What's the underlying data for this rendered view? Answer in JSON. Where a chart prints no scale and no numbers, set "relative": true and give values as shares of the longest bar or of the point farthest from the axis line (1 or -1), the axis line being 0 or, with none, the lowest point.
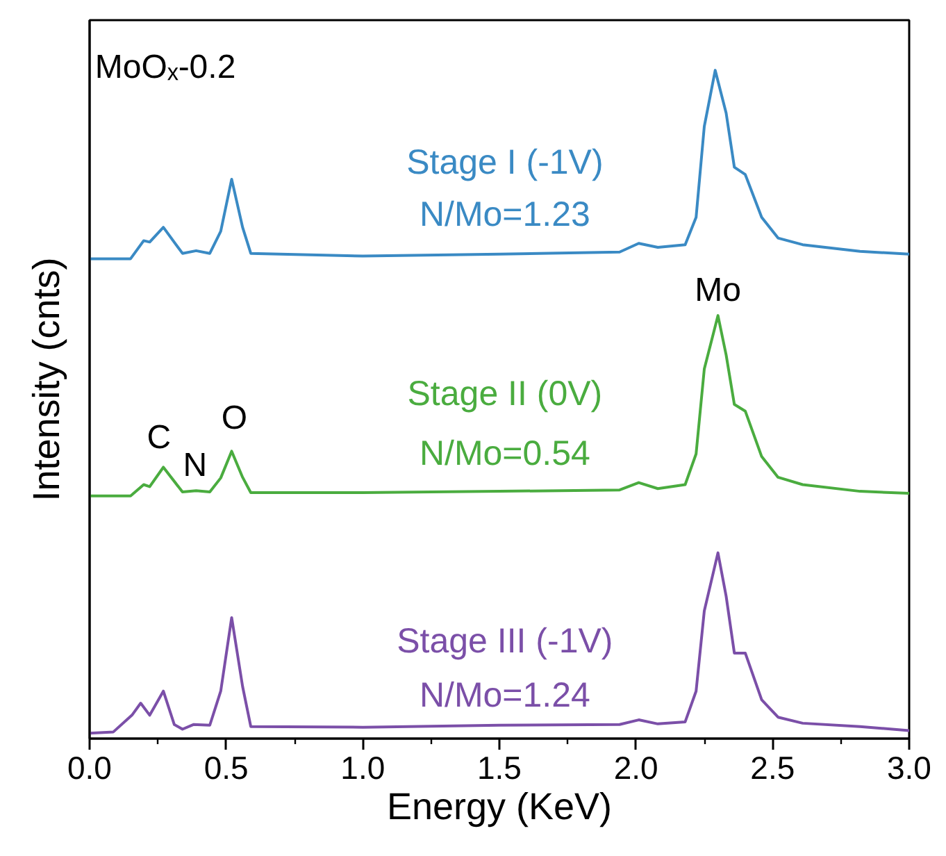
{
  "chart_data": {
    "type": "line",
    "relative": true,
    "xlabel": "Energy (KeV)",
    "ylabel": "Intensity (cnts)",
    "xlim": [
      0,
      3
    ],
    "xticks": [
      {
        "value": 0,
        "label": "0.0"
      },
      0.5,
      {
        "value": 1,
        "label": "1.0"
      },
      1.5,
      {
        "value": 2,
        "label": "2.0"
      },
      2.5,
      {
        "value": 3,
        "label": "3.0"
      }
    ],
    "grid": false,
    "marker": "none",
    "line_style": "solid",
    "annotations": [
      "MoOₓ-0.2",
      "C",
      "N",
      "O",
      "Mo",
      "N/Mo=1.23",
      "N/Mo=0.54",
      "N/Mo=1.24"
    ],
    "series": [
      {
        "name": "Stage I (-1V)",
        "color": "#3a8ac4",
        "x": [
          0,
          0.15,
          0.198,
          0.22,
          0.27,
          0.34,
          0.39,
          0.44,
          0.48,
          0.52,
          0.56,
          0.59,
          1.0,
          1.5,
          1.94,
          2.01,
          2.08,
          2.18,
          2.22,
          2.25,
          2.29,
          2.33,
          2.36,
          2.4,
          2.46,
          2.52,
          2.61,
          2.82,
          3.0
        ],
        "values": [
          0.718,
          0.718,
          0.745,
          0.743,
          0.765,
          0.726,
          0.73,
          0.726,
          0.759,
          0.837,
          0.765,
          0.726,
          0.722,
          0.725,
          0.728,
          0.741,
          0.735,
          0.739,
          0.78,
          0.916,
          1.0,
          0.936,
          0.855,
          0.844,
          0.78,
          0.749,
          0.739,
          0.729,
          0.725
        ]
      },
      {
        "name": "Stage II (0V)",
        "color": "#4aac3f",
        "x": [
          0,
          0.15,
          0.198,
          0.22,
          0.27,
          0.34,
          0.39,
          0.44,
          0.48,
          0.52,
          0.56,
          0.59,
          1.0,
          1.5,
          1.94,
          2.01,
          2.08,
          2.18,
          2.22,
          2.25,
          2.3,
          2.33,
          2.36,
          2.4,
          2.46,
          2.52,
          2.61,
          2.82,
          3.0
        ],
        "values": [
          0.363,
          0.363,
          0.38,
          0.377,
          0.406,
          0.369,
          0.371,
          0.369,
          0.39,
          0.43,
          0.391,
          0.368,
          0.368,
          0.37,
          0.372,
          0.383,
          0.374,
          0.38,
          0.426,
          0.553,
          0.633,
          0.574,
          0.5,
          0.49,
          0.422,
          0.391,
          0.38,
          0.37,
          0.367
        ]
      },
      {
        "name": "Stage III (-1V)",
        "color": "#7b4fa8",
        "x": [
          0,
          0.087,
          0.155,
          0.187,
          0.22,
          0.27,
          0.31,
          0.34,
          0.38,
          0.44,
          0.48,
          0.52,
          0.56,
          0.59,
          1.0,
          1.5,
          1.94,
          2.01,
          2.08,
          2.18,
          2.22,
          2.25,
          2.3,
          2.33,
          2.36,
          2.4,
          2.46,
          2.52,
          2.61,
          2.82,
          3.0
        ],
        "values": [
          0.008,
          0.01,
          0.035,
          0.053,
          0.035,
          0.071,
          0.021,
          0.014,
          0.021,
          0.02,
          0.071,
          0.181,
          0.078,
          0.018,
          0.017,
          0.02,
          0.021,
          0.028,
          0.022,
          0.025,
          0.071,
          0.191,
          0.278,
          0.213,
          0.128,
          0.128,
          0.058,
          0.032,
          0.023,
          0.018,
          0.012
        ]
      }
    ]
  }
}
